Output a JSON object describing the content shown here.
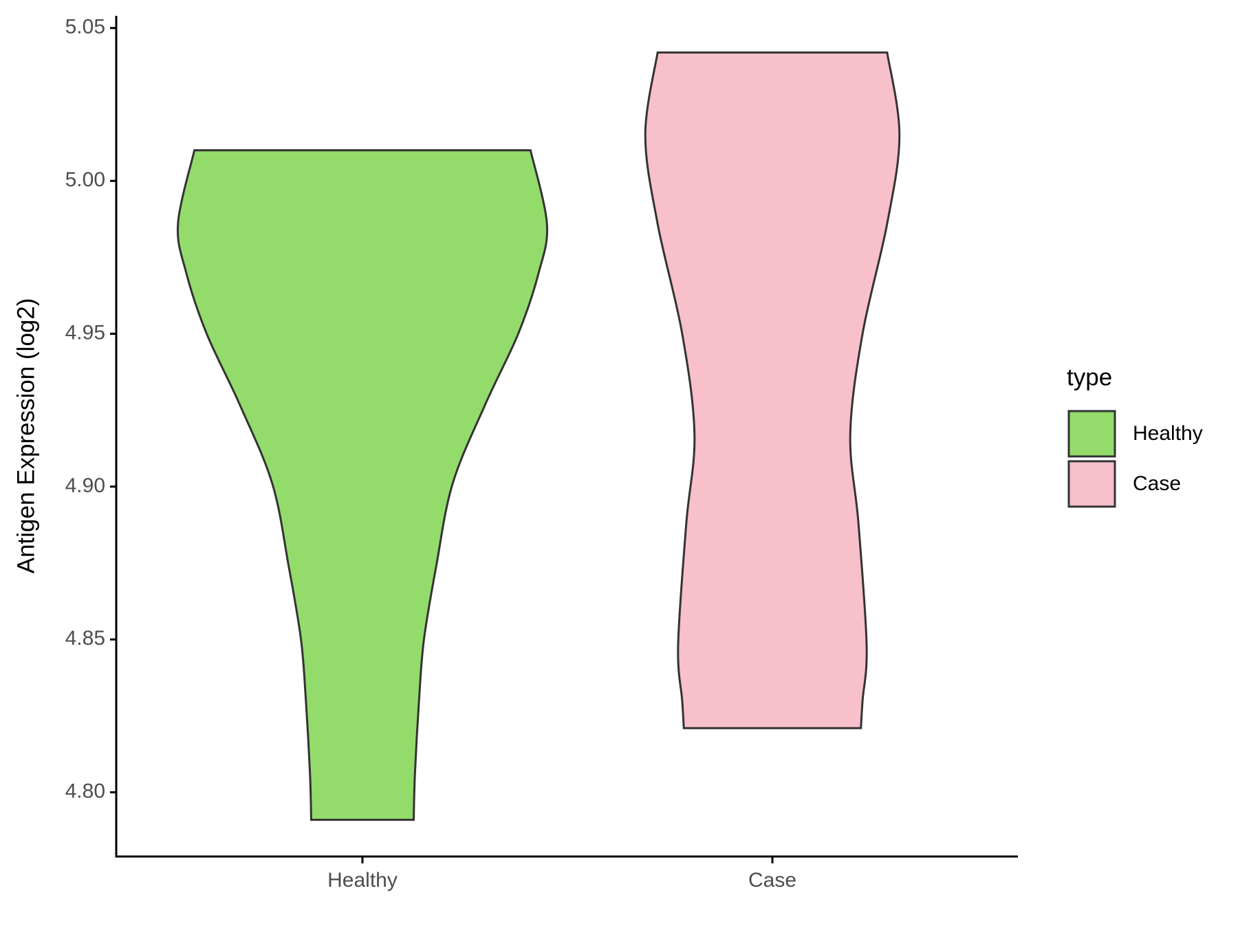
{
  "chart_data": {
    "type": "violin",
    "y_label": "Antigen Expression (log2)",
    "categories": [
      "Healthy",
      "Case"
    ],
    "ylim": [
      4.779,
      5.054
    ],
    "yticks": [
      {
        "value": 4.8,
        "label": "4.80"
      },
      4.85,
      {
        "value": 4.9,
        "label": "4.90"
      },
      4.95,
      {
        "value": 5.0,
        "label": "5.00"
      },
      5.05
    ],
    "legend_title": "type",
    "legend_position": "right",
    "series": [
      {
        "name": "Healthy",
        "color": "#93dc6b",
        "profile_y": [
          4.791,
          4.806,
          4.83,
          4.85,
          4.874,
          4.901,
          4.927,
          4.95,
          4.97,
          4.986,
          5.01
        ],
        "profile_width": [
          0.125,
          0.128,
          0.138,
          0.15,
          0.18,
          0.22,
          0.3,
          0.38,
          0.43,
          0.45,
          0.41
        ]
      },
      {
        "name": "Case",
        "color": "#f7c0cb",
        "profile_y": [
          4.821,
          4.83,
          4.848,
          4.888,
          4.917,
          4.95,
          4.986,
          5.015,
          5.042
        ],
        "profile_width": [
          0.216,
          0.22,
          0.23,
          0.21,
          0.19,
          0.22,
          0.28,
          0.31,
          0.28
        ]
      }
    ]
  }
}
